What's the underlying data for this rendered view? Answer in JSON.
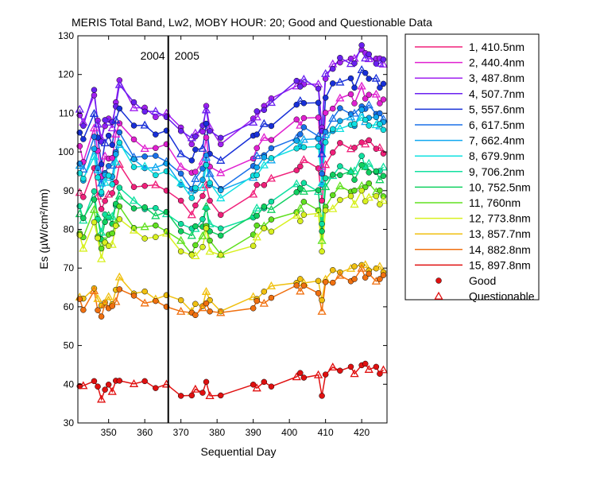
{
  "chart_data": {
    "type": "line",
    "title": "MERIS Total Band,  Lw2, MOBY HOUR: 20;  Good and Questionable Data",
    "xlabel": "Sequential Day",
    "ylabel": "Es (µW/cm²/nm)",
    "xlim": [
      341.5,
      427
    ],
    "ylim": [
      30,
      130
    ],
    "xticks": [
      350,
      360,
      370,
      380,
      390,
      400,
      410,
      420
    ],
    "yticks": [
      30,
      40,
      50,
      60,
      70,
      80,
      90,
      100,
      110,
      120,
      130
    ],
    "grid": false,
    "legend_position": "right",
    "annotations": [
      {
        "text": "2004",
        "x": 366.5,
        "side": "left"
      },
      {
        "text": "2005",
        "x": 366.5,
        "side": "right"
      }
    ],
    "year_divider_x": 366.5,
    "x": [
      342,
      343,
      346,
      347,
      348,
      349,
      350,
      351,
      352,
      353,
      357,
      360,
      363,
      366,
      370,
      373,
      374,
      376,
      377,
      378,
      381,
      390,
      391,
      393,
      395,
      402,
      403,
      404,
      408,
      409,
      410,
      412,
      414,
      417,
      418,
      420,
      421,
      422,
      424,
      425,
      426
    ],
    "marker_legend": [
      {
        "label": "Good",
        "marker": "circle"
      },
      {
        "label": "Questionable",
        "marker": "triangle"
      }
    ],
    "series": [
      {
        "name": "1, 410.5nm",
        "color": "#f0207a",
        "base": 90.5,
        "amp": 0.72
      },
      {
        "name": "2, 440.4nm",
        "color": "#e020d0",
        "base": 101,
        "amp": 0.86
      },
      {
        "name": "3, 487.8nm",
        "color": "#a020f0",
        "base": 110,
        "amp": 0.94
      },
      {
        "name": "4, 507.7nm",
        "color": "#6a20f0",
        "base": 110,
        "amp": 0.92
      },
      {
        "name": "5, 557.6nm",
        "color": "#1830d8",
        "base": 105,
        "amp": 0.9
      },
      {
        "name": "6, 617.5nm",
        "color": "#1a70e8",
        "base": 98,
        "amp": 0.82
      },
      {
        "name": "7, 662.4nm",
        "color": "#10a8f0",
        "base": 96,
        "amp": 0.8
      },
      {
        "name": "8, 679.9nm",
        "color": "#10e0e0",
        "base": 95,
        "amp": 0.8
      },
      {
        "name": "9, 706.2nm",
        "color": "#10e0a0",
        "base": 85,
        "amp": 0.72
      },
      {
        "name": "10, 752.5nm",
        "color": "#10d060",
        "base": 84,
        "amp": 0.7
      },
      {
        "name": "11,   760nm",
        "color": "#60e020",
        "base": 80,
        "amp": 0.68
      },
      {
        "name": "12, 773.8nm",
        "color": "#d8f020",
        "base": 78,
        "amp": 0.64
      },
      {
        "name": "13, 857.7nm",
        "color": "#f0c010",
        "base": 63,
        "amp": 0.46
      },
      {
        "name": "14, 882.8nm",
        "color": "#f07010",
        "base": 61,
        "amp": 0.44
      },
      {
        "name": "15, 897.8nm",
        "color": "#e01010",
        "base": 39.5,
        "amp": 0.3
      }
    ],
    "pattern": [
      0,
      -3,
      6,
      -2,
      -8,
      -3,
      -2,
      -3,
      3,
      8,
      2,
      1,
      0,
      0,
      -5,
      -8,
      -6,
      -4,
      2,
      -5,
      -8,
      -2,
      0,
      2,
      3,
      8,
      8,
      9,
      8,
      -5,
      10,
      13,
      15,
      15,
      14,
      18,
      16,
      16,
      15,
      14,
      14
    ]
  }
}
